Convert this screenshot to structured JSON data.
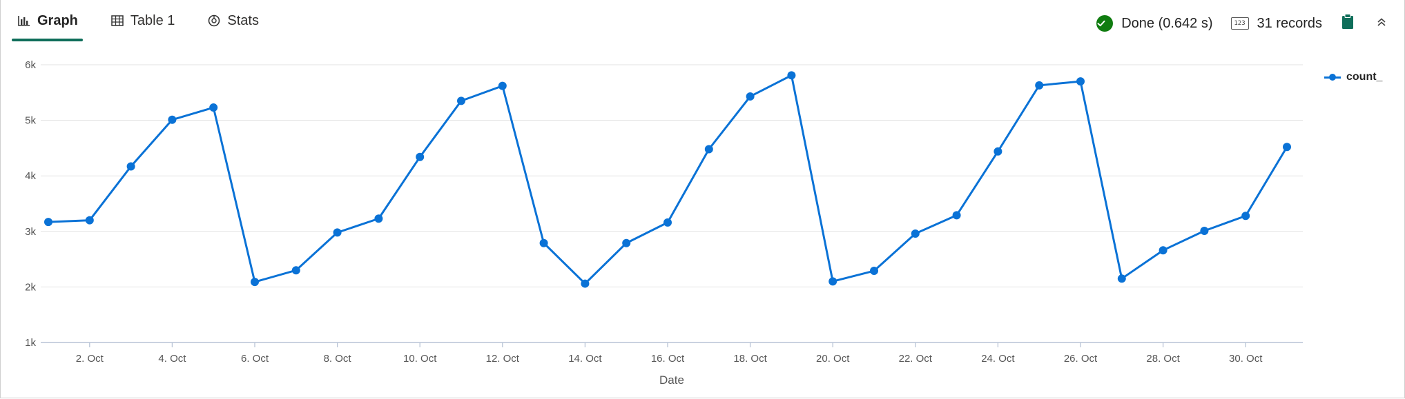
{
  "tabs": [
    {
      "label": "Graph",
      "icon": "bar-chart-icon",
      "active": true
    },
    {
      "label": "Table 1",
      "icon": "table-icon",
      "active": false
    },
    {
      "label": "Stats",
      "icon": "stats-icon",
      "active": false
    }
  ],
  "status": {
    "done_text": "Done (0.642 s)",
    "records_icon_text": "123",
    "records_text": "31 records",
    "accent_success": "#107c10"
  },
  "chart_data": {
    "type": "line",
    "xlabel": "Date",
    "ylabel": "",
    "x_range": [
      "1 Oct",
      "31 Oct"
    ],
    "ylim": [
      1000,
      6000
    ],
    "y_ticks": [
      1000,
      2000,
      3000,
      4000,
      5000,
      6000
    ],
    "y_tick_labels": [
      "1k",
      "2k",
      "3k",
      "4k",
      "5k",
      "6k"
    ],
    "x_tick_labels": [
      "2. Oct",
      "4. Oct",
      "6. Oct",
      "8. Oct",
      "10. Oct",
      "12. Oct",
      "14. Oct",
      "16. Oct",
      "18. Oct",
      "20. Oct",
      "22. Oct",
      "24. Oct",
      "26. Oct",
      "28. Oct",
      "30. Oct"
    ],
    "grid": true,
    "legend_position": "top-right",
    "color": "#0a72d6",
    "series": [
      {
        "name": "count_",
        "x": [
          "1 Oct",
          "2 Oct",
          "3 Oct",
          "4 Oct",
          "5 Oct",
          "6 Oct",
          "7 Oct",
          "8 Oct",
          "9 Oct",
          "10 Oct",
          "11 Oct",
          "12 Oct",
          "13 Oct",
          "14 Oct",
          "15 Oct",
          "16 Oct",
          "17 Oct",
          "18 Oct",
          "19 Oct",
          "20 Oct",
          "21 Oct",
          "22 Oct",
          "23 Oct",
          "24 Oct",
          "25 Oct",
          "26 Oct",
          "27 Oct",
          "28 Oct",
          "29 Oct",
          "30 Oct",
          "31 Oct"
        ],
        "values": [
          3170,
          3200,
          4170,
          5010,
          5230,
          2090,
          2300,
          2980,
          3230,
          4340,
          5350,
          5620,
          2790,
          2060,
          2790,
          3160,
          4480,
          5430,
          5810,
          2100,
          2290,
          2960,
          3290,
          4440,
          5630,
          5700,
          2150,
          2660,
          3010,
          3280,
          4520
        ]
      }
    ]
  }
}
